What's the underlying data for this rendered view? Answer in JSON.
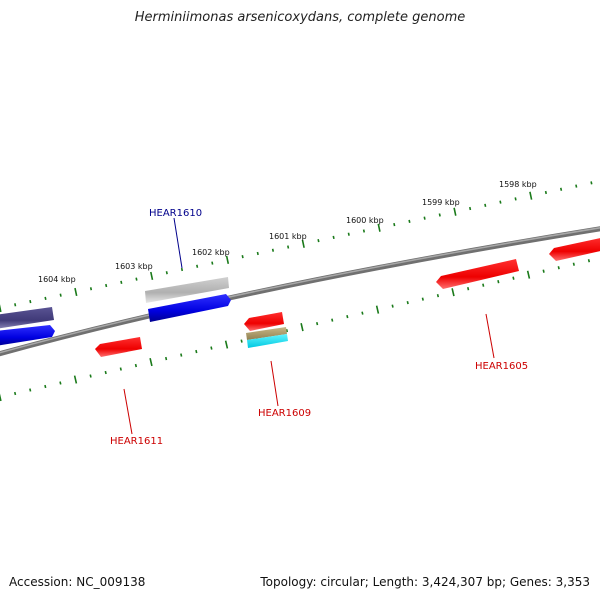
{
  "title": "Herminiimonas arsenicoxydans, complete genome",
  "footer": {
    "accession": "Accession: NC_009138",
    "info": "Topology: circular; Length: 3,424,307 bp; Genes: 3,353"
  },
  "scale": {
    "unit": "kbp",
    "labels": [
      {
        "text": "1604 kbp",
        "kbp": 1604
      },
      {
        "text": "1603 kbp",
        "kbp": 1603
      },
      {
        "text": "1602 kbp",
        "kbp": 1602
      },
      {
        "text": "1601 kbp",
        "kbp": 1601
      },
      {
        "text": "1600 kbp",
        "kbp": 1600
      },
      {
        "text": "1599 kbp",
        "kbp": 1599
      },
      {
        "text": "1598 kbp",
        "kbp": 1598
      }
    ]
  },
  "genes": [
    {
      "label": "HEAR1610",
      "color": "#00008b"
    },
    {
      "label": "HEAR1611",
      "color": "#cc0000"
    },
    {
      "label": "HEAR1609",
      "color": "#cc0000"
    },
    {
      "label": "HEAR1605",
      "color": "#cc0000"
    }
  ],
  "colors": {
    "backbone": "#808080",
    "tick": "#1a7a1a",
    "forward_gene": "#0000ee",
    "reverse_gene": "#ee0000",
    "grey_gene": "#b8b8b8",
    "purple_gene": "#4b4582",
    "cyan_gene": "#00e0f0",
    "olive_gene": "#b0a070"
  }
}
